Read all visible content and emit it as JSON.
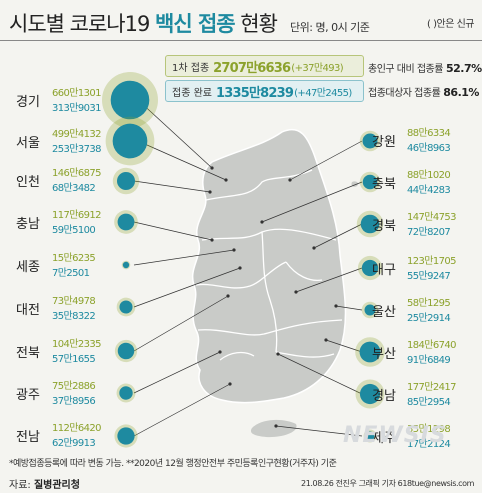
{
  "header": {
    "title_prefix": "시도별 코로나19 ",
    "title_bold": "백신 접종",
    "title_suffix": " 현황",
    "unit": "단위: 명, 0시 기준",
    "note_new": "( )안은 신규"
  },
  "summary": {
    "first_label": "1차 접종",
    "first_value": "2707만6636",
    "first_delta": "(+37만493)",
    "full_label": "접종 완료",
    "full_value": "1335만8239",
    "full_delta": "(+47만2455)",
    "rate_pop_label": "총인구 대비 접종률",
    "rate_pop_value": "52.7%",
    "rate_target_label": "접종대상자 접종률",
    "rate_target_value": "86.1%"
  },
  "chart_data": {
    "type": "bubble-map",
    "title": "시도별 코로나19 백신 접종 현황",
    "unit": "명",
    "series": [
      {
        "name": "1차 접종",
        "color": "#8ca22c"
      },
      {
        "name": "접종 완료",
        "color": "#1e8aa0"
      }
    ],
    "regions": [
      {
        "name": "경기",
        "first": 6601301,
        "first_label": "660만1301",
        "full": 3139031,
        "full_label": "313만9031",
        "side": "left"
      },
      {
        "name": "서울",
        "first": 4994132,
        "first_label": "499만4132",
        "full": 2533738,
        "full_label": "253만3738",
        "side": "left"
      },
      {
        "name": "인천",
        "first": 1466875,
        "first_label": "146만6875",
        "full": 683482,
        "full_label": "68만3482",
        "side": "left"
      },
      {
        "name": "충남",
        "first": 1176912,
        "first_label": "117만6912",
        "full": 595100,
        "full_label": "59만5100",
        "side": "left"
      },
      {
        "name": "세종",
        "first": 156235,
        "first_label": "15만6235",
        "full": 72501,
        "full_label": "7만2501",
        "side": "left"
      },
      {
        "name": "대전",
        "first": 734978,
        "first_label": "73만4978",
        "full": 358322,
        "full_label": "35만8322",
        "side": "left"
      },
      {
        "name": "전북",
        "first": 1042335,
        "first_label": "104만2335",
        "full": 571655,
        "full_label": "57만1655",
        "side": "left"
      },
      {
        "name": "광주",
        "first": 752886,
        "first_label": "75만2886",
        "full": 378956,
        "full_label": "37만8956",
        "side": "left"
      },
      {
        "name": "전남",
        "first": 1126420,
        "first_label": "112만6420",
        "full": 629913,
        "full_label": "62만9913",
        "side": "left"
      },
      {
        "name": "강원",
        "first": 886334,
        "first_label": "88만6334",
        "full": 468963,
        "full_label": "46만8963",
        "side": "right"
      },
      {
        "name": "충북",
        "first": 881020,
        "first_label": "88만1020",
        "full": 444283,
        "full_label": "44만4283",
        "side": "right"
      },
      {
        "name": "경북",
        "first": 1474753,
        "first_label": "147만4753",
        "full": 728207,
        "full_label": "72만8207",
        "side": "right"
      },
      {
        "name": "대구",
        "first": 1231705,
        "first_label": "123만1705",
        "full": 559247,
        "full_label": "55만9247",
        "side": "right"
      },
      {
        "name": "울산",
        "first": 581295,
        "first_label": "58만1295",
        "full": 252914,
        "full_label": "25만2914",
        "side": "right"
      },
      {
        "name": "부산",
        "first": 1846740,
        "first_label": "184만6740",
        "full": 916849,
        "full_label": "91만6849",
        "side": "right"
      },
      {
        "name": "경남",
        "first": 1772417,
        "first_label": "177만2417",
        "full": 852954,
        "full_label": "85만2954",
        "side": "right"
      },
      {
        "name": "제주",
        "first": 351298,
        "first_label": "35만1298",
        "full": 172124,
        "full_label": "17만2124",
        "side": "right"
      }
    ]
  },
  "footnote": "*예방접종등록에 따라 변동 가능. **2020년 12월 행정안전부 주민등록인구현황(거주자) 기준",
  "source_label": "자료: ",
  "source_name": "질병관리청",
  "credit": "21.08.26 전진우 그래픽 기자 618tue@newsis.com",
  "watermark": "NEWSIS"
}
